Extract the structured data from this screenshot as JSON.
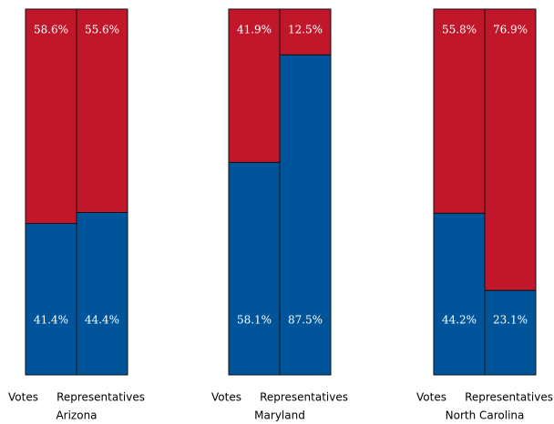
{
  "chart_data": [
    {
      "type": "bar",
      "stacked": true,
      "title": "Arizona",
      "categories": [
        "Votes",
        "Representatives"
      ],
      "ylim": [
        0,
        100
      ],
      "series": [
        {
          "color": "#00559a",
          "values": [
            41.4,
            44.4
          ],
          "value_labels": [
            "41.4%",
            "44.4%"
          ]
        },
        {
          "color": "#c0182a",
          "values": [
            58.6,
            55.6
          ],
          "value_labels": [
            "58.6%",
            "55.6%"
          ]
        }
      ]
    },
    {
      "type": "bar",
      "stacked": true,
      "title": "Maryland",
      "categories": [
        "Votes",
        "Representatives"
      ],
      "ylim": [
        0,
        100
      ],
      "series": [
        {
          "color": "#00559a",
          "values": [
            58.1,
            87.5
          ],
          "value_labels": [
            "58.1%",
            "87.5%"
          ]
        },
        {
          "color": "#c0182a",
          "values": [
            41.9,
            12.5
          ],
          "value_labels": [
            "41.9%",
            "12.5%"
          ]
        }
      ]
    },
    {
      "type": "bar",
      "stacked": true,
      "title": "North Carolina",
      "categories": [
        "Votes",
        "Representatives"
      ],
      "ylim": [
        0,
        100
      ],
      "series": [
        {
          "color": "#00559a",
          "values": [
            44.2,
            23.1
          ],
          "value_labels": [
            "44.2%",
            "23.1%"
          ]
        },
        {
          "color": "#c0182a",
          "values": [
            55.8,
            76.9
          ],
          "value_labels": [
            "55.8%",
            "76.9%"
          ]
        }
      ]
    }
  ]
}
